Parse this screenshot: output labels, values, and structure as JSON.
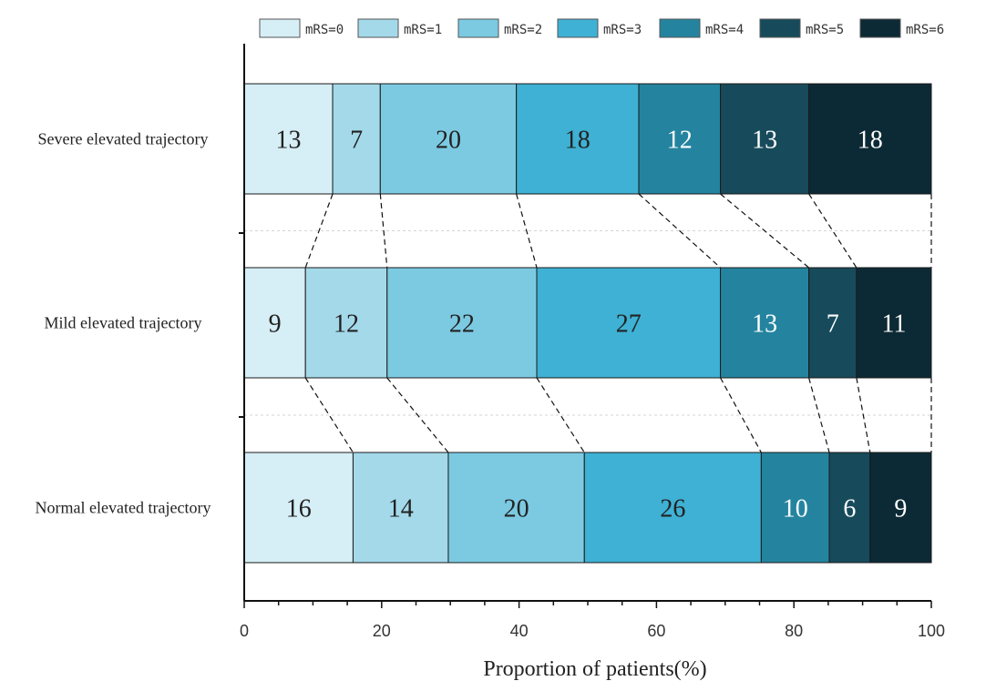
{
  "chart_data": {
    "type": "bar",
    "orientation": "horizontal",
    "stacked": true,
    "xlabel": "Proportion of patients(%)",
    "xlim": [
      0,
      100
    ],
    "x_ticks": [
      "0",
      "20",
      "40",
      "60",
      "80",
      "100"
    ],
    "legend_placement": "top",
    "legend": [
      "mRS=0",
      "mRS=1",
      "mRS=2",
      "mRS=3",
      "mRS=4",
      "mRS=5",
      "mRS=6"
    ],
    "colors": [
      "#d6eef6",
      "#a4d9ea",
      "#7ccae2",
      "#3eb1d4",
      "#24849f",
      "#174b5b",
      "#0c2a35"
    ],
    "label_colors": [
      "#222222",
      "#222222",
      "#222222",
      "#222222",
      "#ffffff",
      "#ffffff",
      "#ffffff"
    ],
    "categories": [
      "Severe elevated trajectory",
      "Mild elevated trajectory",
      "Normal elevated trajectory"
    ],
    "rows": [
      {
        "name": "Severe elevated trajectory",
        "values": [
          13,
          7,
          20,
          18,
          12,
          13,
          18
        ],
        "labels": [
          "13",
          "7",
          "20",
          "18",
          "12",
          "13",
          "18"
        ]
      },
      {
        "name": "Mild elevated trajectory",
        "values": [
          9,
          12,
          22,
          27,
          13,
          7,
          11
        ],
        "labels": [
          "9",
          "12",
          "22",
          "27",
          "13",
          "7",
          "11"
        ]
      },
      {
        "name": "Normal elevated trajectory",
        "values": [
          16,
          14,
          20,
          26,
          10,
          6,
          9
        ],
        "labels": [
          "16",
          "14",
          "20",
          "26",
          "10",
          "6",
          "9"
        ]
      }
    ]
  }
}
